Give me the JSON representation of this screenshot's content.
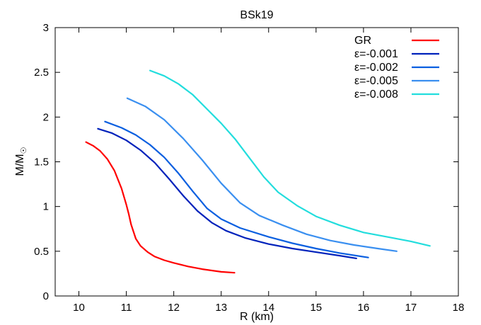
{
  "chart_data": {
    "type": "line",
    "title": "BSk19",
    "xlabel": "R (km)",
    "ylabel": "M/M",
    "ylabel_sub": "☉",
    "xlim": [
      9.5,
      18
    ],
    "ylim": [
      0,
      3
    ],
    "xticks": [
      "10",
      "11",
      "12",
      "13",
      "14",
      "15",
      "16",
      "17",
      "18"
    ],
    "yticks": [
      "0",
      "0.5",
      "1",
      "1.5",
      "2",
      "2.5",
      "3"
    ],
    "grid": false,
    "legend_position": "top-right",
    "series": [
      {
        "name": "GR",
        "color": "#ff0000",
        "x": [
          10.15,
          10.3,
          10.45,
          10.6,
          10.75,
          10.9,
          11.0,
          11.05,
          11.1,
          11.2,
          11.3,
          11.45,
          11.6,
          11.8,
          12.0,
          12.3,
          12.6,
          13.0,
          13.28
        ],
        "y": [
          1.72,
          1.68,
          1.62,
          1.53,
          1.4,
          1.2,
          1.02,
          0.92,
          0.8,
          0.64,
          0.56,
          0.49,
          0.44,
          0.4,
          0.37,
          0.33,
          0.3,
          0.27,
          0.26
        ]
      },
      {
        "name": "ε=-0.001",
        "color": "#0022bb",
        "x": [
          10.4,
          10.7,
          11.0,
          11.3,
          11.6,
          11.9,
          12.2,
          12.5,
          12.8,
          13.1,
          13.5,
          14.0,
          14.5,
          15.0,
          15.5,
          15.85
        ],
        "y": [
          1.87,
          1.82,
          1.74,
          1.63,
          1.49,
          1.31,
          1.12,
          0.95,
          0.82,
          0.73,
          0.65,
          0.58,
          0.53,
          0.49,
          0.45,
          0.42
        ]
      },
      {
        "name": "ε=-0.002",
        "color": "#0a5fe0",
        "x": [
          10.55,
          10.9,
          11.2,
          11.5,
          11.8,
          12.1,
          12.4,
          12.7,
          13.0,
          13.4,
          14.0,
          14.5,
          15.0,
          15.5,
          16.1
        ],
        "y": [
          1.95,
          1.88,
          1.8,
          1.69,
          1.55,
          1.37,
          1.17,
          0.98,
          0.86,
          0.76,
          0.66,
          0.59,
          0.53,
          0.48,
          0.43
        ]
      },
      {
        "name": "ε=-0.005",
        "color": "#3a8ff0",
        "x": [
          11.02,
          11.4,
          11.8,
          12.2,
          12.6,
          13.0,
          13.4,
          13.8,
          14.3,
          14.8,
          15.3,
          15.8,
          16.3,
          16.7
        ],
        "y": [
          2.21,
          2.12,
          1.97,
          1.76,
          1.52,
          1.26,
          1.04,
          0.9,
          0.79,
          0.69,
          0.62,
          0.57,
          0.53,
          0.5
        ]
      },
      {
        "name": "ε=-0.008",
        "color": "#22dddd",
        "x": [
          11.5,
          11.8,
          12.1,
          12.4,
          12.7,
          13.0,
          13.3,
          13.6,
          13.9,
          14.2,
          14.6,
          15.0,
          15.5,
          16.0,
          16.5,
          17.0,
          17.4
        ],
        "y": [
          2.52,
          2.46,
          2.37,
          2.25,
          2.09,
          1.93,
          1.75,
          1.54,
          1.33,
          1.16,
          1.01,
          0.89,
          0.79,
          0.71,
          0.66,
          0.61,
          0.56
        ]
      }
    ]
  }
}
